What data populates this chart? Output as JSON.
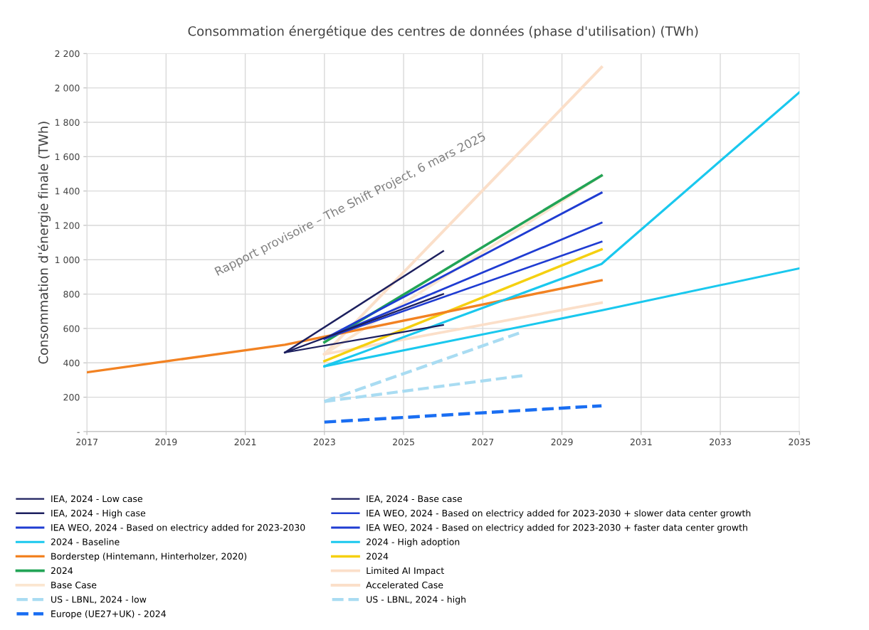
{
  "chart_data": {
    "type": "line",
    "title": "Consommation énergétique des centres de données (phase d'utilisation) (TWh)",
    "ylabel": "Consommation d'énergie finale (TWh)",
    "xlim": [
      2017,
      2035
    ],
    "xticks": [
      2017,
      2019,
      2021,
      2023,
      2025,
      2027,
      2029,
      2031,
      2033,
      2035
    ],
    "ylim": [
      0,
      2200
    ],
    "yticks": [
      {
        "value": 0,
        "label": "-"
      },
      200,
      400,
      600,
      800,
      {
        "value": 1000,
        "label": "1 000"
      },
      {
        "value": 1200,
        "label": "1 200"
      },
      {
        "value": 1400,
        "label": "1 400"
      },
      {
        "value": 1600,
        "label": "1 600"
      },
      {
        "value": 1800,
        "label": "1 800"
      },
      {
        "value": 2000,
        "label": "2 000"
      },
      {
        "value": 2200,
        "label": "2 200"
      }
    ],
    "grid": true,
    "legend": "bottom",
    "line_style": "solid",
    "annotations": [
      "Rapport provisoire – The Shift Project, 6 mars 2025"
    ],
    "series": [
      {
        "name": "IEA, 2024 - Low case",
        "color": "#1c1f5e",
        "x": [
          2022,
          2026
        ],
        "values": [
          460,
          620
        ]
      },
      {
        "name": "IEA, 2024 - Base case",
        "color": "#1c1f5e",
        "x": [
          2022,
          2026
        ],
        "values": [
          460,
          800
        ]
      },
      {
        "name": "IEA, 2024 - High case",
        "color": "#1c1f5e",
        "x": [
          2022,
          2026
        ],
        "values": [
          460,
          1050
        ]
      },
      {
        "name": "IEA WEO, 2024 - Based on electricy added for 2023-2030 + slower data center growth",
        "color": "#1f3cd2",
        "x": [
          2023,
          2030
        ],
        "values": [
          540,
          1105
        ]
      },
      {
        "name": "IEA WEO, 2024 - Based on electricy added for 2023-2030",
        "color": "#1f3cd2",
        "x": [
          2023,
          2030
        ],
        "values": [
          540,
          1215
        ]
      },
      {
        "name": "IEA WEO, 2024 - Based on electricy added for 2023-2030 + faster data center growth",
        "color": "#1f3cd2",
        "x": [
          2023,
          2030
        ],
        "values": [
          540,
          1390
        ]
      },
      {
        "name": "2024 - Baseline",
        "color": "#1ac8ee",
        "x": [
          2023,
          2030,
          2035
        ],
        "values": [
          380,
          705,
          950
        ]
      },
      {
        "name": "2024 - High adoption",
        "color": "#1ac8ee",
        "x": [
          2023,
          2030,
          2035
        ],
        "values": [
          380,
          975,
          1975
        ]
      },
      {
        "name": "Borderstep (Hintemann, Hinterholzer, 2020)",
        "color": "#f28222",
        "x": [
          2017,
          2022,
          2030
        ],
        "values": [
          345,
          505,
          880
        ]
      },
      {
        "name": "2024",
        "color": "#f5d010",
        "x": [
          2023,
          2030
        ],
        "values": [
          410,
          1060
        ]
      },
      {
        "name": "2024",
        "color": "#22a456",
        "x": [
          2023,
          2030
        ],
        "values": [
          520,
          1490
        ]
      },
      {
        "name": "Limited AI Impact",
        "color": "#fbdfc9",
        "x": [
          2023,
          2030
        ],
        "values": [
          450,
          750
        ]
      },
      {
        "name": "Base Case",
        "color": "#fbe6d0",
        "x": [
          2023,
          2030
        ],
        "values": [
          450,
          1490
        ]
      },
      {
        "name": "Accelerated Case",
        "color": "#fbdfc9",
        "x": [
          2023,
          2030
        ],
        "values": [
          450,
          2120
        ]
      },
      {
        "name": "US - LBNL, 2024 - low",
        "color": "#a9dcf2",
        "line_style": "dashed",
        "x": [
          2023,
          2028
        ],
        "values": [
          175,
          325
        ]
      },
      {
        "name": "US - LBNL, 2024 - high",
        "color": "#a9dcf2",
        "line_style": "dashed",
        "x": [
          2023,
          2028
        ],
        "values": [
          175,
          580
        ]
      },
      {
        "name": "Europe (UE27+UK) - 2024",
        "color": "#1a6ef2",
        "line_style": "dashed",
        "x": [
          2023,
          2030
        ],
        "values": [
          55,
          150
        ]
      }
    ]
  }
}
